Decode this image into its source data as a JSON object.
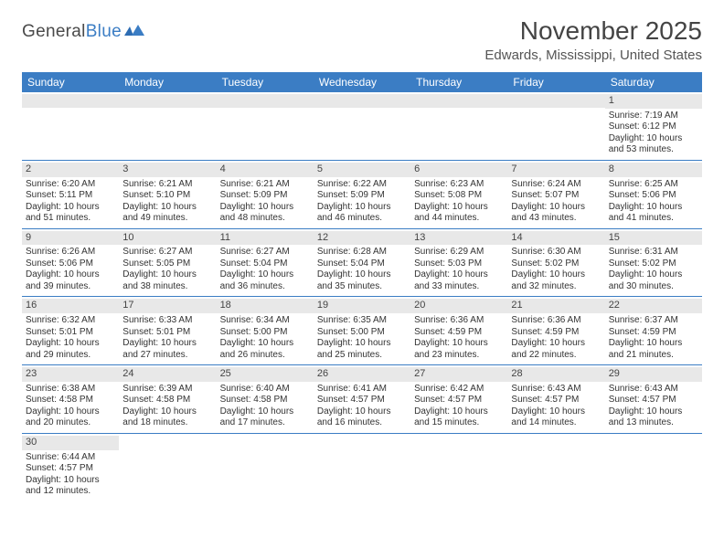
{
  "logo": {
    "word1": "General",
    "word2": "Blue"
  },
  "title": "November 2025",
  "location": "Edwards, Mississippi, United States",
  "colors": {
    "header_bg": "#3b7dc4",
    "row_divider": "#3b7dc4",
    "daynum_bg": "#e8e8e8",
    "text": "#333333",
    "title_text": "#444444"
  },
  "weekdays": [
    "Sunday",
    "Monday",
    "Tuesday",
    "Wednesday",
    "Thursday",
    "Friday",
    "Saturday"
  ],
  "weeks": [
    [
      null,
      null,
      null,
      null,
      null,
      null,
      {
        "n": "1",
        "sr": "7:19 AM",
        "ss": "6:12 PM",
        "dl": "10 hours and 53 minutes."
      }
    ],
    [
      {
        "n": "2",
        "sr": "6:20 AM",
        "ss": "5:11 PM",
        "dl": "10 hours and 51 minutes."
      },
      {
        "n": "3",
        "sr": "6:21 AM",
        "ss": "5:10 PM",
        "dl": "10 hours and 49 minutes."
      },
      {
        "n": "4",
        "sr": "6:21 AM",
        "ss": "5:09 PM",
        "dl": "10 hours and 48 minutes."
      },
      {
        "n": "5",
        "sr": "6:22 AM",
        "ss": "5:09 PM",
        "dl": "10 hours and 46 minutes."
      },
      {
        "n": "6",
        "sr": "6:23 AM",
        "ss": "5:08 PM",
        "dl": "10 hours and 44 minutes."
      },
      {
        "n": "7",
        "sr": "6:24 AM",
        "ss": "5:07 PM",
        "dl": "10 hours and 43 minutes."
      },
      {
        "n": "8",
        "sr": "6:25 AM",
        "ss": "5:06 PM",
        "dl": "10 hours and 41 minutes."
      }
    ],
    [
      {
        "n": "9",
        "sr": "6:26 AM",
        "ss": "5:06 PM",
        "dl": "10 hours and 39 minutes."
      },
      {
        "n": "10",
        "sr": "6:27 AM",
        "ss": "5:05 PM",
        "dl": "10 hours and 38 minutes."
      },
      {
        "n": "11",
        "sr": "6:27 AM",
        "ss": "5:04 PM",
        "dl": "10 hours and 36 minutes."
      },
      {
        "n": "12",
        "sr": "6:28 AM",
        "ss": "5:04 PM",
        "dl": "10 hours and 35 minutes."
      },
      {
        "n": "13",
        "sr": "6:29 AM",
        "ss": "5:03 PM",
        "dl": "10 hours and 33 minutes."
      },
      {
        "n": "14",
        "sr": "6:30 AM",
        "ss": "5:02 PM",
        "dl": "10 hours and 32 minutes."
      },
      {
        "n": "15",
        "sr": "6:31 AM",
        "ss": "5:02 PM",
        "dl": "10 hours and 30 minutes."
      }
    ],
    [
      {
        "n": "16",
        "sr": "6:32 AM",
        "ss": "5:01 PM",
        "dl": "10 hours and 29 minutes."
      },
      {
        "n": "17",
        "sr": "6:33 AM",
        "ss": "5:01 PM",
        "dl": "10 hours and 27 minutes."
      },
      {
        "n": "18",
        "sr": "6:34 AM",
        "ss": "5:00 PM",
        "dl": "10 hours and 26 minutes."
      },
      {
        "n": "19",
        "sr": "6:35 AM",
        "ss": "5:00 PM",
        "dl": "10 hours and 25 minutes."
      },
      {
        "n": "20",
        "sr": "6:36 AM",
        "ss": "4:59 PM",
        "dl": "10 hours and 23 minutes."
      },
      {
        "n": "21",
        "sr": "6:36 AM",
        "ss": "4:59 PM",
        "dl": "10 hours and 22 minutes."
      },
      {
        "n": "22",
        "sr": "6:37 AM",
        "ss": "4:59 PM",
        "dl": "10 hours and 21 minutes."
      }
    ],
    [
      {
        "n": "23",
        "sr": "6:38 AM",
        "ss": "4:58 PM",
        "dl": "10 hours and 20 minutes."
      },
      {
        "n": "24",
        "sr": "6:39 AM",
        "ss": "4:58 PM",
        "dl": "10 hours and 18 minutes."
      },
      {
        "n": "25",
        "sr": "6:40 AM",
        "ss": "4:58 PM",
        "dl": "10 hours and 17 minutes."
      },
      {
        "n": "26",
        "sr": "6:41 AM",
        "ss": "4:57 PM",
        "dl": "10 hours and 16 minutes."
      },
      {
        "n": "27",
        "sr": "6:42 AM",
        "ss": "4:57 PM",
        "dl": "10 hours and 15 minutes."
      },
      {
        "n": "28",
        "sr": "6:43 AM",
        "ss": "4:57 PM",
        "dl": "10 hours and 14 minutes."
      },
      {
        "n": "29",
        "sr": "6:43 AM",
        "ss": "4:57 PM",
        "dl": "10 hours and 13 minutes."
      }
    ],
    [
      {
        "n": "30",
        "sr": "6:44 AM",
        "ss": "4:57 PM",
        "dl": "10 hours and 12 minutes."
      },
      null,
      null,
      null,
      null,
      null,
      null
    ]
  ],
  "labels": {
    "sunrise": "Sunrise: ",
    "sunset": "Sunset: ",
    "daylight": "Daylight: "
  }
}
